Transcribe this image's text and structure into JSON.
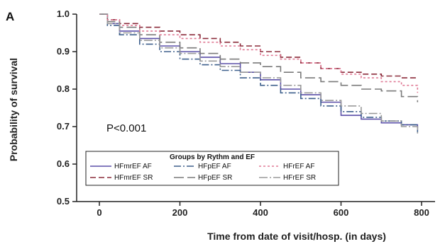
{
  "chart_data": {
    "type": "line",
    "panel_label": "A",
    "title": "",
    "xlabel": "Time from date of visit/hosp. (in days)",
    "ylabel": "Probability of survival",
    "xlim": [
      -40,
      830
    ],
    "ylim": [
      0.5,
      1.0
    ],
    "x_ticks": [
      0,
      200,
      400,
      600,
      800
    ],
    "y_ticks": [
      0.5,
      0.6,
      0.7,
      0.8,
      0.9,
      1.0
    ],
    "y_tick_labels": [
      "0.5",
      "0.6",
      "0.7",
      "0.8",
      "0.9",
      "1.0"
    ],
    "grid": false,
    "annotation": "P<0.001",
    "legend": {
      "title": "Groups by Rythm and EF",
      "placement": "bottom-left",
      "columns": 3
    },
    "series": [
      {
        "name": "HFmrEF AF",
        "color": "#5a4fa8",
        "dash": "solid",
        "x": [
          0,
          20,
          50,
          100,
          150,
          200,
          250,
          300,
          350,
          400,
          450,
          500,
          550,
          600,
          650,
          700,
          750,
          790
        ],
        "y": [
          1.0,
          0.975,
          0.955,
          0.935,
          0.915,
          0.9,
          0.885,
          0.868,
          0.845,
          0.825,
          0.8,
          0.785,
          0.765,
          0.73,
          0.72,
          0.71,
          0.705,
          0.69
        ]
      },
      {
        "name": "HFmrEF SR",
        "color": "#8b2b3a",
        "dash": "8,4",
        "x": [
          0,
          20,
          50,
          100,
          150,
          200,
          250,
          300,
          350,
          400,
          450,
          500,
          550,
          600,
          650,
          700,
          750,
          790
        ],
        "y": [
          1.0,
          0.985,
          0.975,
          0.965,
          0.955,
          0.945,
          0.935,
          0.925,
          0.915,
          0.9,
          0.885,
          0.87,
          0.855,
          0.845,
          0.84,
          0.835,
          0.83,
          0.83
        ]
      },
      {
        "name": "HFpEF AF",
        "color": "#3d5f8c",
        "dash": "10,3,2,3",
        "x": [
          0,
          20,
          50,
          100,
          150,
          200,
          250,
          300,
          350,
          400,
          450,
          500,
          550,
          600,
          650,
          700,
          750,
          790
        ],
        "y": [
          1.0,
          0.97,
          0.945,
          0.92,
          0.9,
          0.88,
          0.865,
          0.85,
          0.83,
          0.81,
          0.79,
          0.775,
          0.755,
          0.74,
          0.725,
          0.715,
          0.705,
          0.685
        ]
      },
      {
        "name": "HFpEF SR",
        "color": "#7a7a7a",
        "dash": "14,5",
        "x": [
          0,
          20,
          50,
          100,
          150,
          200,
          250,
          300,
          350,
          400,
          450,
          500,
          550,
          600,
          650,
          700,
          750,
          790
        ],
        "y": [
          1.0,
          0.98,
          0.965,
          0.945,
          0.925,
          0.91,
          0.895,
          0.88,
          0.87,
          0.86,
          0.845,
          0.83,
          0.82,
          0.81,
          0.8,
          0.795,
          0.78,
          0.765
        ]
      },
      {
        "name": "HFrEF AF",
        "color": "#e07a95",
        "dash": "3,3",
        "x": [
          0,
          20,
          50,
          100,
          150,
          200,
          250,
          300,
          350,
          400,
          450,
          500,
          550,
          600,
          650,
          700,
          750,
          790
        ],
        "y": [
          1.0,
          0.985,
          0.97,
          0.955,
          0.945,
          0.935,
          0.925,
          0.915,
          0.905,
          0.89,
          0.88,
          0.87,
          0.855,
          0.84,
          0.83,
          0.82,
          0.81,
          0.79
        ]
      },
      {
        "name": "HFrEF SR",
        "color": "#9a9a9a",
        "dash": "12,3,2,3",
        "x": [
          0,
          20,
          50,
          100,
          150,
          200,
          250,
          300,
          350,
          400,
          450,
          500,
          550,
          600,
          650,
          700,
          750,
          790
        ],
        "y": [
          1.0,
          0.975,
          0.95,
          0.93,
          0.91,
          0.895,
          0.875,
          0.86,
          0.845,
          0.83,
          0.81,
          0.79,
          0.77,
          0.755,
          0.735,
          0.715,
          0.7,
          0.68
        ]
      }
    ]
  }
}
